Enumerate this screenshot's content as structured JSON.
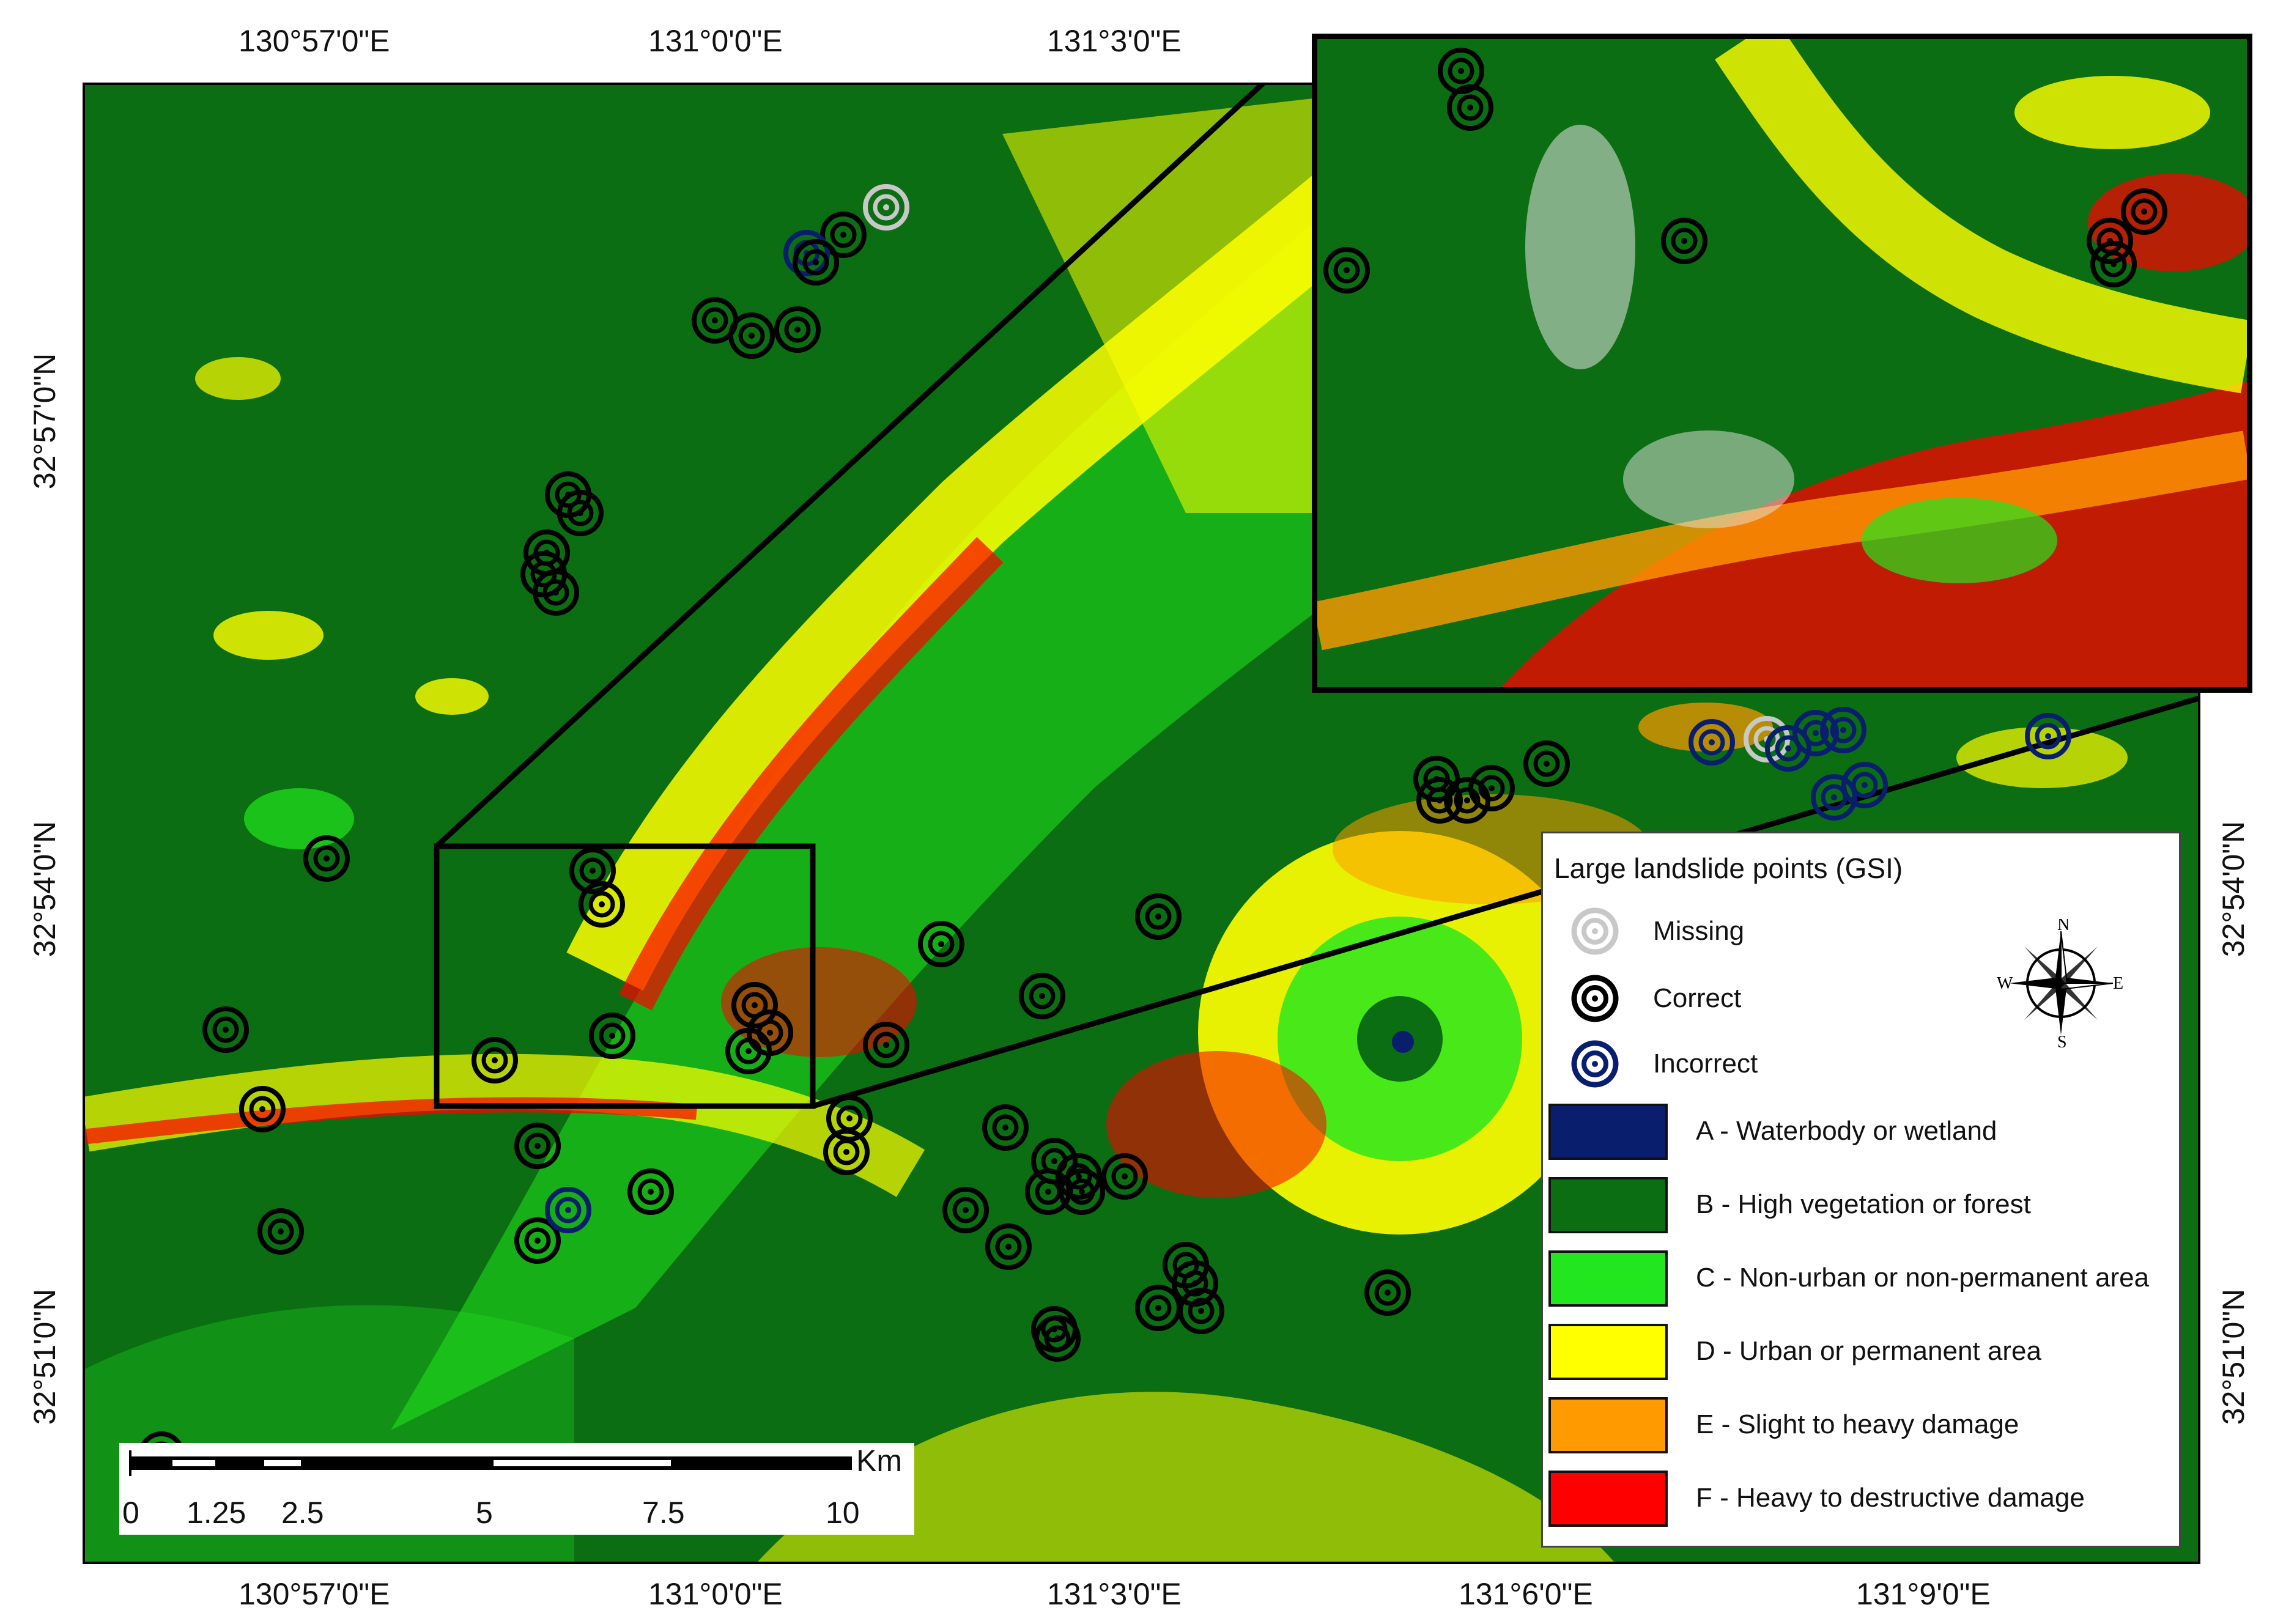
{
  "map": {
    "top_lon_labels": [
      "130°57'0\"E",
      "131°0'0\"E",
      "131°3'0\"E"
    ],
    "bottom_lon_labels": [
      "130°57'0\"E",
      "131°0'0\"E",
      "131°3'0\"E",
      "131°6'0\"E",
      "131°9'0\"E"
    ],
    "left_lat_labels": [
      "32°57'0\"N",
      "32°54'0\"N",
      "32°51'0\"N"
    ],
    "right_lat_labels": [
      "32°54'0\"N",
      "32°51'0\"N"
    ]
  },
  "legend": {
    "title": "Large landslide points (GSI)",
    "points": [
      {
        "label": "Missing",
        "color": "#c8c8c8"
      },
      {
        "label": "Correct",
        "color": "#000000"
      },
      {
        "label": "Incorrect",
        "color": "#0a1e6e"
      }
    ],
    "classes": [
      {
        "label": "A - Waterbody or wetland",
        "color": "#0a1e6e"
      },
      {
        "label": "B - High vegetation or forest",
        "color": "#0b6e12"
      },
      {
        "label": "C - Non-urban or non-permanent area",
        "color": "#22e61e"
      },
      {
        "label": "D - Urban or permanent area",
        "color": "#ffff00"
      },
      {
        "label": "E - Slight to heavy damage",
        "color": "#ff9a00"
      },
      {
        "label": "F - Heavy to destructive damage",
        "color": "#ff0000"
      }
    ],
    "compass": {
      "n": "N",
      "s": "S",
      "e": "E",
      "w": "W"
    }
  },
  "scalebar": {
    "unit": "Km",
    "ticks": [
      "0",
      "1.25",
      "2.5",
      "5",
      "7.5",
      "10"
    ]
  }
}
